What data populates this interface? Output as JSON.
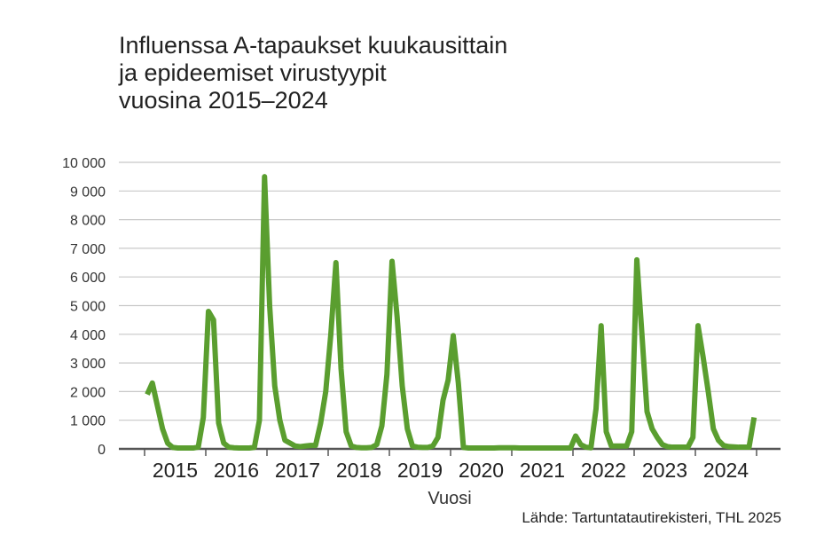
{
  "chart_data": {
    "type": "line",
    "title_lines": [
      "Influenssa A-tapaukset kuukausittain",
      "ja epideemiset virustyypit",
      "vuosina 2015–2024"
    ],
    "xlabel": "Vuosi",
    "ylabel": "",
    "ylim": [
      0,
      10000
    ],
    "y_ticks": [
      {
        "value": 0,
        "label": "0"
      },
      {
        "value": 1000,
        "label": "1 000"
      },
      {
        "value": 2000,
        "label": "2 000"
      },
      {
        "value": 3000,
        "label": "3 000"
      },
      {
        "value": 4000,
        "label": "4 000"
      },
      {
        "value": 5000,
        "label": "5 000"
      },
      {
        "value": 6000,
        "label": "6 000"
      },
      {
        "value": 7000,
        "label": "7 000"
      },
      {
        "value": 8000,
        "label": "8 000"
      },
      {
        "value": 9000,
        "label": "9 000"
      },
      {
        "value": 10000,
        "label": "10 000"
      }
    ],
    "x_ticks": [
      "2015",
      "2016",
      "2017",
      "2018",
      "2019",
      "2020",
      "2021",
      "2022",
      "2023",
      "2024"
    ],
    "grid": true,
    "line_color": "#5a9e2f",
    "series": [
      {
        "values": [
          1900,
          2300,
          1500,
          700,
          200,
          50,
          30,
          30,
          30,
          30,
          60,
          1100,
          4800,
          4500,
          900,
          200,
          60,
          40,
          30,
          30,
          30,
          50,
          1000,
          9500,
          5000,
          2200,
          1000,
          300,
          200,
          100,
          80,
          100,
          120,
          120,
          900,
          2000,
          4000,
          6500,
          2800,
          600,
          100,
          50,
          40,
          40,
          50,
          150,
          800,
          2600,
          6550,
          4600,
          2200,
          700,
          100,
          60,
          50,
          50,
          100,
          400,
          1700,
          2400,
          3950,
          2300,
          50,
          30,
          30,
          30,
          30,
          30,
          30,
          40,
          40,
          40,
          40,
          30,
          30,
          30,
          30,
          30,
          30,
          30,
          30,
          30,
          30,
          30,
          450,
          150,
          60,
          40,
          1400,
          4300,
          600,
          100,
          100,
          100,
          100,
          600,
          6600,
          4000,
          1300,
          700,
          400,
          150,
          80,
          60,
          60,
          60,
          60,
          400,
          4300,
          3200,
          2000,
          700,
          300,
          120,
          80,
          70,
          60,
          60,
          60,
          1100
        ]
      }
    ]
  },
  "source": "Lähde: Tartuntatautirekisteri, THL 2025"
}
